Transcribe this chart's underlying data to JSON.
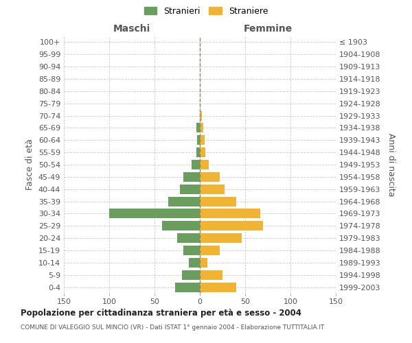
{
  "age_groups": [
    "0-4",
    "5-9",
    "10-14",
    "15-19",
    "20-24",
    "25-29",
    "30-34",
    "35-39",
    "40-44",
    "45-49",
    "50-54",
    "55-59",
    "60-64",
    "65-69",
    "70-74",
    "75-79",
    "80-84",
    "85-89",
    "90-94",
    "95-99",
    "100+"
  ],
  "birth_years": [
    "1999-2003",
    "1994-1998",
    "1989-1993",
    "1984-1988",
    "1979-1983",
    "1974-1978",
    "1969-1973",
    "1964-1968",
    "1959-1963",
    "1954-1958",
    "1949-1953",
    "1944-1948",
    "1939-1943",
    "1934-1938",
    "1929-1933",
    "1924-1928",
    "1919-1923",
    "1914-1918",
    "1909-1913",
    "1904-1908",
    "≤ 1903"
  ],
  "males": [
    27,
    20,
    12,
    18,
    25,
    42,
    100,
    35,
    22,
    18,
    9,
    4,
    3,
    4,
    0,
    0,
    0,
    0,
    0,
    0,
    0
  ],
  "females": [
    40,
    25,
    8,
    22,
    46,
    70,
    67,
    40,
    27,
    22,
    10,
    6,
    5,
    4,
    2,
    0,
    0,
    0,
    0,
    0,
    0
  ],
  "male_color": "#6a9e5f",
  "female_color": "#f0b432",
  "grid_color": "#cccccc",
  "center_line_color": "#888866",
  "bg_color": "#ffffff",
  "xlim": 150,
  "title": "Popolazione per cittadinanza straniera per età e sesso - 2004",
  "subtitle": "COMUNE DI VALEGGIO SUL MINCIO (VR) - Dati ISTAT 1° gennaio 2004 - Elaborazione TUTTITALIA.IT",
  "legend_male": "Stranieri",
  "legend_female": "Straniere",
  "xlabel_left": "Maschi",
  "xlabel_right": "Femmine",
  "ylabel_left": "Fasce di età",
  "ylabel_right": "Anni di nascita"
}
